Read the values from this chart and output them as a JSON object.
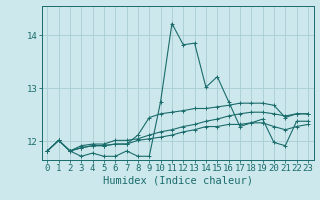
{
  "bg_color": "#cce8ec",
  "grid_color": "#a8cdd4",
  "line_color": "#1a6b6b",
  "xlabel": "Humidex (Indice chaleur)",
  "xlabel_fontsize": 7.5,
  "tick_fontsize": 6.5,
  "ylabel_ticks": [
    12,
    13,
    14
  ],
  "xlim": [
    -0.5,
    23.5
  ],
  "ylim": [
    11.65,
    14.55
  ],
  "x_ticks": [
    0,
    1,
    2,
    3,
    4,
    5,
    6,
    7,
    8,
    9,
    10,
    11,
    12,
    13,
    14,
    15,
    16,
    17,
    18,
    19,
    20,
    21,
    22,
    23
  ],
  "series": [
    [
      11.82,
      12.02,
      11.82,
      11.72,
      11.78,
      11.72,
      11.72,
      11.82,
      11.72,
      11.72,
      12.75,
      14.22,
      13.82,
      13.85,
      13.02,
      13.22,
      12.75,
      12.28,
      12.35,
      12.42,
      11.98,
      11.92,
      12.38,
      12.38
    ],
    [
      11.82,
      12.02,
      11.82,
      11.88,
      11.92,
      11.92,
      11.95,
      11.95,
      12.12,
      12.45,
      12.52,
      12.55,
      12.58,
      12.62,
      12.62,
      12.65,
      12.68,
      12.72,
      12.72,
      12.72,
      12.68,
      12.45,
      12.52,
      12.52
    ],
    [
      11.82,
      12.02,
      11.82,
      11.92,
      11.95,
      11.95,
      12.02,
      12.02,
      12.05,
      12.12,
      12.18,
      12.22,
      12.28,
      12.32,
      12.38,
      12.42,
      12.48,
      12.52,
      12.55,
      12.55,
      12.52,
      12.48,
      12.52,
      12.52
    ],
    [
      11.82,
      12.02,
      11.82,
      11.88,
      11.92,
      11.92,
      11.95,
      11.95,
      12.02,
      12.05,
      12.08,
      12.12,
      12.18,
      12.22,
      12.28,
      12.28,
      12.32,
      12.32,
      12.35,
      12.35,
      12.28,
      12.22,
      12.28,
      12.32
    ]
  ]
}
